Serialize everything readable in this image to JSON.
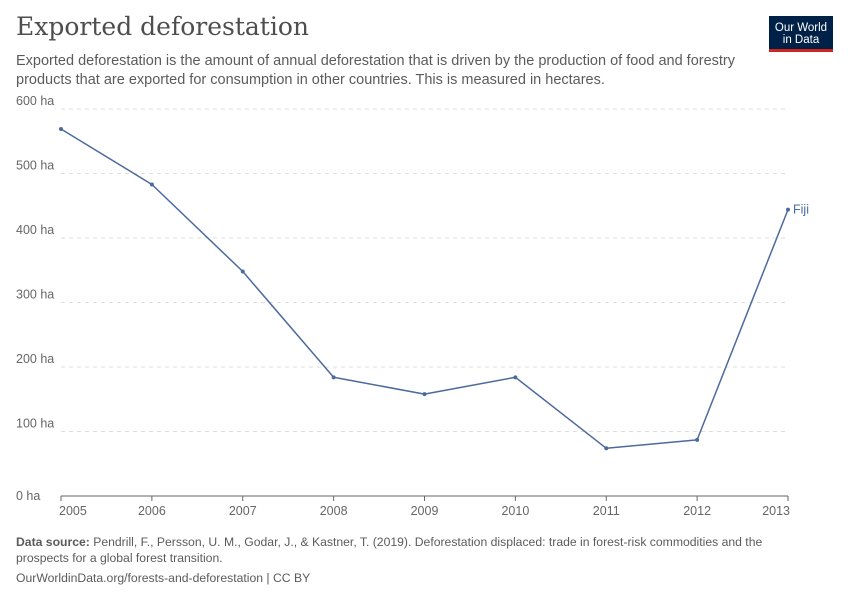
{
  "title": "Exported deforestation",
  "subtitle": "Exported deforestation is the amount of annual deforestation that is driven by the production of food and forestry products that are exported for consumption in other countries. This is measured in hectares.",
  "logo": {
    "line1": "Our World",
    "line2": "in Data"
  },
  "source": {
    "label": "Data source:",
    "text": "Pendrill, F., Persson, U. M., Godar, J., & Kastner, T. (2019). Deforestation displaced: trade in forest-risk commodities and the prospects for a global forest transition."
  },
  "url_line": "OurWorldinData.org/forests-and-deforestation | CC BY",
  "colors": {
    "series": "#4c6a9c",
    "grid": "#dddddd",
    "axis": "#666666"
  },
  "chart_data": {
    "type": "line",
    "title": "Exported deforestation",
    "xlabel": "",
    "ylabel": "",
    "x": [
      2005,
      2006,
      2007,
      2008,
      2009,
      2010,
      2011,
      2012,
      2013
    ],
    "series": [
      {
        "name": "Fiji",
        "values": [
          569,
          483,
          348,
          184,
          158,
          184,
          74,
          87,
          444
        ]
      }
    ],
    "ylim": [
      0,
      600
    ],
    "yticks": [
      0,
      100,
      200,
      300,
      400,
      500,
      600
    ],
    "ytick_labels": [
      "0 ha",
      "100 ha",
      "200 ha",
      "300 ha",
      "400 ha",
      "500 ha",
      "600 ha"
    ],
    "xtick_labels": [
      "2005",
      "2006",
      "2007",
      "2008",
      "2009",
      "2010",
      "2011",
      "2012",
      "2013"
    ],
    "grid": true
  }
}
